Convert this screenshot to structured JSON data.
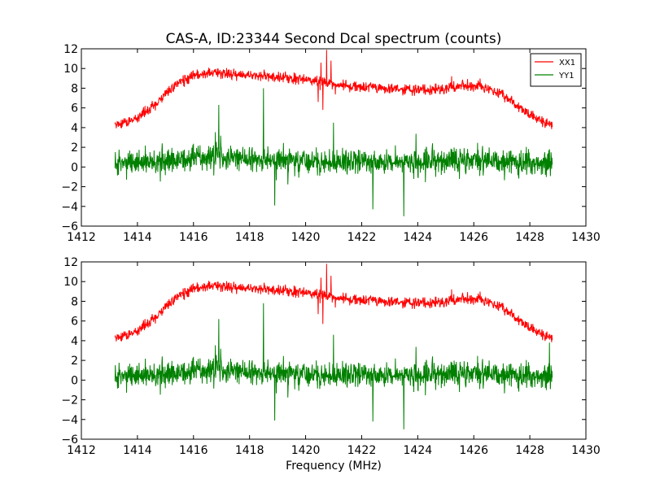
{
  "chart_data": [
    {
      "type": "line",
      "title": "CAS-A, ID:23344 Second Dcal spectrum (counts)",
      "xlabel": "",
      "ylabel": "",
      "xlim": [
        1412,
        1430
      ],
      "ylim": [
        -6,
        12
      ],
      "xticks": [
        1412,
        1414,
        1416,
        1418,
        1420,
        1422,
        1424,
        1426,
        1428,
        1430
      ],
      "yticks": [
        -6,
        -4,
        -2,
        0,
        2,
        4,
        6,
        8,
        10,
        12
      ],
      "x_range": [
        1413.2,
        1428.8
      ],
      "grid": false,
      "legend_position": "top-right",
      "series": [
        {
          "name": "XX1",
          "color": "#ff0000",
          "noise": 0.45,
          "envelope": [
            [
              1413.2,
              4.3
            ],
            [
              1413.6,
              4.5
            ],
            [
              1414.0,
              5.0
            ],
            [
              1414.5,
              6.1
            ],
            [
              1415.0,
              7.4
            ],
            [
              1415.5,
              8.6
            ],
            [
              1416.0,
              9.2
            ],
            [
              1416.5,
              9.5
            ],
            [
              1417.0,
              9.5
            ],
            [
              1417.5,
              9.4
            ],
            [
              1418.0,
              9.3
            ],
            [
              1419.0,
              9.1
            ],
            [
              1420.0,
              8.9
            ],
            [
              1420.5,
              8.7
            ],
            [
              1421.0,
              8.4
            ],
            [
              1422.0,
              8.1
            ],
            [
              1423.0,
              7.9
            ],
            [
              1424.0,
              7.8
            ],
            [
              1425.0,
              7.9
            ],
            [
              1425.5,
              8.2
            ],
            [
              1426.0,
              8.3
            ],
            [
              1426.5,
              8.0
            ],
            [
              1427.0,
              7.4
            ],
            [
              1427.5,
              6.3
            ],
            [
              1428.0,
              5.3
            ],
            [
              1428.5,
              4.5
            ],
            [
              1428.8,
              4.2
            ]
          ],
          "features": [
            [
              1420.75,
              11.9
            ],
            [
              1420.62,
              5.8
            ],
            [
              1420.9,
              10.8
            ],
            [
              1420.45,
              6.6
            ],
            [
              1420.55,
              10.6
            ]
          ]
        },
        {
          "name": "YY1",
          "color": "#008000",
          "noise": 1.1,
          "envelope": [
            [
              1413.2,
              0.4
            ],
            [
              1414.0,
              0.5
            ],
            [
              1415.0,
              0.7
            ],
            [
              1416.0,
              0.9
            ],
            [
              1417.0,
              0.9
            ],
            [
              1418.0,
              0.8
            ],
            [
              1419.0,
              0.7
            ],
            [
              1420.0,
              0.6
            ],
            [
              1421.0,
              0.5
            ],
            [
              1422.0,
              0.5
            ],
            [
              1423.0,
              0.5
            ],
            [
              1424.0,
              0.5
            ],
            [
              1425.0,
              0.6
            ],
            [
              1426.0,
              0.6
            ],
            [
              1427.0,
              0.5
            ],
            [
              1428.0,
              0.4
            ],
            [
              1428.8,
              0.3
            ]
          ],
          "features": [
            [
              1418.5,
              8.0
            ],
            [
              1423.5,
              -5.0
            ],
            [
              1421.0,
              4.5
            ],
            [
              1416.9,
              6.3
            ],
            [
              1422.4,
              -4.3
            ],
            [
              1418.9,
              -3.9
            ],
            [
              1428.7,
              1.8
            ]
          ]
        }
      ]
    },
    {
      "type": "line",
      "title": "",
      "xlabel": "Frequency (MHz)",
      "ylabel": "",
      "xlim": [
        1412,
        1430
      ],
      "ylim": [
        -6,
        12
      ],
      "xticks": [
        1412,
        1414,
        1416,
        1418,
        1420,
        1422,
        1424,
        1426,
        1428,
        1430
      ],
      "yticks": [
        -6,
        -4,
        -2,
        0,
        2,
        4,
        6,
        8,
        10,
        12
      ],
      "x_range": [
        1413.2,
        1428.8
      ],
      "grid": false,
      "legend_position": "none",
      "series": [
        {
          "color": "#ff0000",
          "noise": 0.45,
          "envelope": [
            [
              1413.2,
              4.3
            ],
            [
              1413.6,
              4.5
            ],
            [
              1414.0,
              5.0
            ],
            [
              1414.5,
              6.1
            ],
            [
              1415.0,
              7.4
            ],
            [
              1415.5,
              8.6
            ],
            [
              1416.0,
              9.2
            ],
            [
              1416.5,
              9.5
            ],
            [
              1417.0,
              9.5
            ],
            [
              1417.5,
              9.4
            ],
            [
              1418.0,
              9.3
            ],
            [
              1419.0,
              9.1
            ],
            [
              1420.0,
              8.9
            ],
            [
              1420.5,
              8.7
            ],
            [
              1421.0,
              8.4
            ],
            [
              1422.0,
              8.1
            ],
            [
              1423.0,
              7.9
            ],
            [
              1424.0,
              7.8
            ],
            [
              1425.0,
              7.9
            ],
            [
              1425.5,
              8.2
            ],
            [
              1426.0,
              8.3
            ],
            [
              1426.5,
              8.0
            ],
            [
              1427.0,
              7.4
            ],
            [
              1427.5,
              6.3
            ],
            [
              1428.0,
              5.3
            ],
            [
              1428.5,
              4.5
            ],
            [
              1428.8,
              4.2
            ]
          ],
          "features": [
            [
              1420.75,
              11.8
            ],
            [
              1420.62,
              5.7
            ],
            [
              1420.9,
              10.6
            ],
            [
              1420.45,
              6.7
            ],
            [
              1420.55,
              10.4
            ]
          ]
        },
        {
          "color": "#008000",
          "noise": 1.1,
          "envelope": [
            [
              1413.2,
              0.4
            ],
            [
              1414.0,
              0.5
            ],
            [
              1415.0,
              0.7
            ],
            [
              1416.0,
              0.9
            ],
            [
              1417.0,
              0.9
            ],
            [
              1418.0,
              0.8
            ],
            [
              1419.0,
              0.7
            ],
            [
              1420.0,
              0.6
            ],
            [
              1421.0,
              0.5
            ],
            [
              1422.0,
              0.5
            ],
            [
              1423.0,
              0.5
            ],
            [
              1424.0,
              0.5
            ],
            [
              1425.0,
              0.6
            ],
            [
              1426.0,
              0.6
            ],
            [
              1427.0,
              0.5
            ],
            [
              1428.0,
              0.4
            ],
            [
              1428.8,
              0.3
            ]
          ],
          "features": [
            [
              1418.5,
              7.8
            ],
            [
              1423.5,
              -5.0
            ],
            [
              1421.0,
              4.6
            ],
            [
              1416.9,
              6.2
            ],
            [
              1422.4,
              -4.2
            ],
            [
              1418.9,
              -4.1
            ],
            [
              1428.7,
              3.8
            ]
          ]
        }
      ]
    }
  ]
}
